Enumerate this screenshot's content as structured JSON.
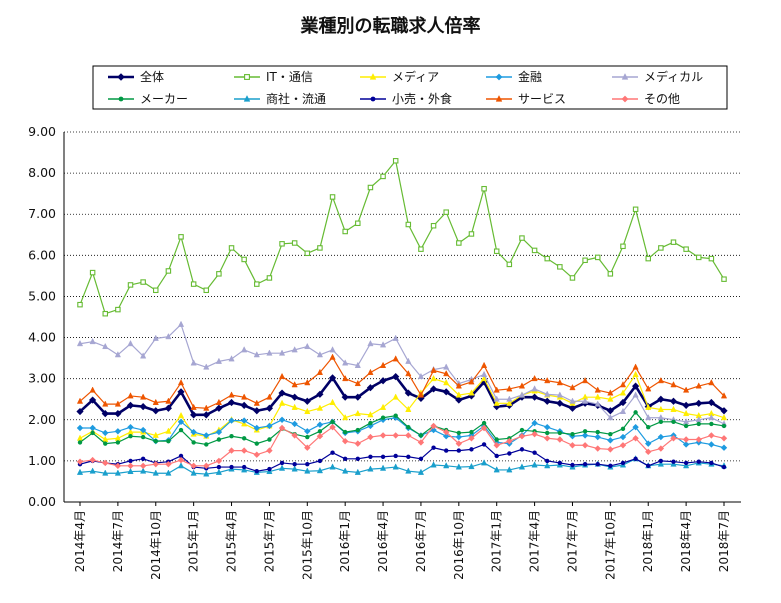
{
  "chart_data": {
    "type": "line",
    "title": "業種別の転職求人倍率",
    "xlabel": "",
    "ylabel": "",
    "ylim": [
      0,
      9
    ],
    "yticks": [
      "0.00",
      "1.00",
      "2.00",
      "3.00",
      "4.00",
      "5.00",
      "6.00",
      "7.00",
      "8.00",
      "9.00"
    ],
    "categories": [
      "2014年4月",
      "2014年5月",
      "2014年6月",
      "2014年7月",
      "2014年8月",
      "2014年9月",
      "2014年10月",
      "2014年11月",
      "2014年12月",
      "2015年1月",
      "2015年2月",
      "2015年3月",
      "2015年4月",
      "2015年5月",
      "2015年6月",
      "2015年7月",
      "2015年8月",
      "2015年9月",
      "2015年10月",
      "2015年11月",
      "2015年12月",
      "2016年1月",
      "2016年2月",
      "2016年3月",
      "2016年4月",
      "2016年5月",
      "2016年6月",
      "2016年7月",
      "2016年8月",
      "2016年9月",
      "2016年10月",
      "2016年11月",
      "2016年12月",
      "2017年1月",
      "2017年2月",
      "2017年3月",
      "2017年4月",
      "2017年5月",
      "2017年6月",
      "2017年7月",
      "2017年8月",
      "2017年9月",
      "2017年10月",
      "2017年11月",
      "2017年12月",
      "2018年1月",
      "2018年2月",
      "2018年3月",
      "2018年4月",
      "2018年5月",
      "2018年6月",
      "2018年7月"
    ],
    "xticks_shown": [
      "2014年4月",
      "2014年7月",
      "2014年10月",
      "2015年1月",
      "2015年4月",
      "2015年7月",
      "2015年10月",
      "2016年1月",
      "2016年4月",
      "2016年7月",
      "2016年10月",
      "2017年1月",
      "2017年4月",
      "2017年7月",
      "2017年10月",
      "2018年1月",
      "2018年4月",
      "2018年7月"
    ],
    "grid": true,
    "legend_position": "top",
    "series": [
      {
        "name": "全体",
        "color": "#000066",
        "marker": "diamond",
        "values": [
          2.2,
          2.48,
          2.15,
          2.15,
          2.35,
          2.32,
          2.22,
          2.28,
          2.68,
          2.12,
          2.12,
          2.28,
          2.42,
          2.35,
          2.22,
          2.28,
          2.65,
          2.55,
          2.45,
          2.62,
          3.02,
          2.55,
          2.55,
          2.78,
          2.95,
          3.05,
          2.65,
          2.52,
          2.75,
          2.68,
          2.48,
          2.58,
          2.92,
          2.32,
          2.35,
          2.55,
          2.55,
          2.45,
          2.4,
          2.28,
          2.4,
          2.35,
          2.22,
          2.42,
          2.82,
          2.32,
          2.5,
          2.45,
          2.35,
          2.4,
          2.42,
          2.22
        ]
      },
      {
        "name": "IT・通信",
        "color": "#66bb33",
        "marker": "square",
        "values": [
          4.8,
          5.58,
          4.58,
          4.68,
          5.28,
          5.35,
          5.15,
          5.62,
          6.45,
          5.3,
          5.15,
          5.55,
          6.18,
          5.9,
          5.3,
          5.45,
          6.28,
          6.3,
          6.05,
          6.18,
          7.42,
          6.58,
          6.78,
          7.65,
          7.92,
          8.3,
          6.75,
          6.15,
          6.72,
          7.05,
          6.3,
          6.52,
          7.62,
          6.1,
          5.78,
          6.42,
          6.12,
          5.92,
          5.72,
          5.45,
          5.88,
          5.95,
          5.55,
          6.22,
          7.12,
          5.92,
          6.18,
          6.32,
          6.15,
          5.95,
          5.92,
          5.42
        ]
      },
      {
        "name": "メディア",
        "color": "#ffee00",
        "marker": "triangle",
        "values": [
          1.55,
          1.72,
          1.52,
          1.55,
          1.7,
          1.7,
          1.62,
          1.72,
          2.1,
          1.65,
          1.6,
          1.75,
          2.0,
          1.9,
          1.75,
          1.85,
          2.4,
          2.3,
          2.2,
          2.28,
          2.42,
          2.05,
          2.15,
          2.12,
          2.3,
          2.55,
          2.25,
          2.65,
          3.0,
          2.9,
          2.6,
          2.65,
          3.0,
          2.4,
          2.4,
          2.6,
          2.7,
          2.6,
          2.55,
          2.4,
          2.55,
          2.55,
          2.5,
          2.65,
          3.1,
          2.3,
          2.25,
          2.25,
          2.15,
          2.1,
          2.15,
          2.05
        ]
      },
      {
        "name": "金融",
        "color": "#1e9be0",
        "marker": "diamond",
        "values": [
          1.8,
          1.8,
          1.68,
          1.72,
          1.82,
          1.75,
          1.48,
          1.5,
          1.95,
          1.7,
          1.62,
          1.7,
          1.98,
          1.98,
          1.8,
          1.85,
          2.0,
          1.9,
          1.72,
          1.88,
          1.95,
          1.68,
          1.72,
          1.85,
          2.0,
          2.05,
          1.8,
          1.62,
          1.75,
          1.6,
          1.58,
          1.62,
          1.85,
          1.45,
          1.42,
          1.62,
          1.92,
          1.82,
          1.72,
          1.6,
          1.62,
          1.58,
          1.5,
          1.58,
          1.82,
          1.42,
          1.58,
          1.62,
          1.4,
          1.45,
          1.4,
          1.32
        ]
      },
      {
        "name": "メディカル",
        "color": "#a6a6d2",
        "marker": "triangle",
        "values": [
          3.85,
          3.9,
          3.78,
          3.58,
          3.85,
          3.55,
          3.98,
          4.02,
          4.32,
          3.38,
          3.28,
          3.42,
          3.48,
          3.7,
          3.58,
          3.62,
          3.62,
          3.7,
          3.78,
          3.58,
          3.7,
          3.38,
          3.32,
          3.85,
          3.82,
          3.98,
          3.42,
          3.05,
          3.22,
          3.28,
          2.88,
          2.98,
          3.1,
          2.5,
          2.5,
          2.6,
          2.75,
          2.62,
          2.6,
          2.45,
          2.45,
          2.38,
          2.05,
          2.2,
          2.6,
          2.05,
          2.05,
          2.0,
          1.95,
          2.0,
          2.05,
          1.9
        ]
      },
      {
        "name": "メーカー",
        "color": "#009944",
        "marker": "circle",
        "values": [
          1.45,
          1.68,
          1.42,
          1.45,
          1.6,
          1.58,
          1.48,
          1.48,
          1.75,
          1.45,
          1.4,
          1.52,
          1.6,
          1.55,
          1.42,
          1.52,
          1.78,
          1.65,
          1.58,
          1.72,
          1.95,
          1.7,
          1.75,
          1.92,
          2.05,
          2.1,
          1.82,
          1.62,
          1.85,
          1.75,
          1.68,
          1.7,
          1.92,
          1.52,
          1.55,
          1.75,
          1.72,
          1.68,
          1.68,
          1.65,
          1.72,
          1.7,
          1.65,
          1.78,
          2.18,
          1.82,
          1.95,
          1.95,
          1.85,
          1.9,
          1.9,
          1.85
        ]
      },
      {
        "name": "商社・流通",
        "color": "#1a9fcc",
        "marker": "triangle",
        "values": [
          0.72,
          0.75,
          0.7,
          0.7,
          0.74,
          0.75,
          0.7,
          0.7,
          0.88,
          0.7,
          0.68,
          0.72,
          0.8,
          0.78,
          0.72,
          0.74,
          0.82,
          0.8,
          0.75,
          0.76,
          0.85,
          0.75,
          0.72,
          0.8,
          0.82,
          0.85,
          0.75,
          0.72,
          0.9,
          0.88,
          0.85,
          0.86,
          0.95,
          0.78,
          0.78,
          0.85,
          0.9,
          0.88,
          0.9,
          0.85,
          0.9,
          0.92,
          0.85,
          0.9,
          1.05,
          0.88,
          0.92,
          0.92,
          0.88,
          0.95,
          0.92,
          0.88
        ]
      },
      {
        "name": "小売・外食",
        "color": "#000099",
        "marker": "circle",
        "values": [
          0.92,
          1.0,
          0.95,
          0.92,
          1.0,
          1.05,
          0.95,
          0.98,
          1.12,
          0.85,
          0.82,
          0.85,
          0.85,
          0.85,
          0.75,
          0.8,
          0.95,
          0.92,
          0.92,
          1.0,
          1.2,
          1.05,
          1.05,
          1.1,
          1.1,
          1.12,
          1.1,
          1.05,
          1.32,
          1.25,
          1.25,
          1.28,
          1.4,
          1.12,
          1.18,
          1.28,
          1.2,
          1.0,
          0.95,
          0.9,
          0.92,
          0.92,
          0.88,
          0.95,
          1.05,
          0.88,
          1.0,
          0.98,
          0.95,
          0.98,
          0.95,
          0.85
        ]
      },
      {
        "name": "サービス",
        "color": "#ee5500",
        "marker": "triangle",
        "values": [
          2.45,
          2.72,
          2.38,
          2.38,
          2.58,
          2.55,
          2.42,
          2.45,
          2.9,
          2.3,
          2.28,
          2.42,
          2.6,
          2.55,
          2.4,
          2.55,
          3.05,
          2.85,
          2.9,
          3.15,
          3.52,
          3.0,
          2.88,
          3.15,
          3.32,
          3.48,
          3.12,
          2.6,
          3.2,
          3.12,
          2.82,
          2.92,
          3.32,
          2.72,
          2.75,
          2.82,
          3.0,
          2.95,
          2.9,
          2.78,
          2.95,
          2.72,
          2.65,
          2.85,
          3.28,
          2.75,
          2.95,
          2.85,
          2.72,
          2.82,
          2.9,
          2.58
        ]
      },
      {
        "name": "その他",
        "color": "#ff7777",
        "marker": "diamond",
        "values": [
          0.98,
          1.02,
          0.95,
          0.88,
          0.88,
          0.88,
          0.92,
          0.92,
          1.02,
          0.88,
          0.88,
          1.0,
          1.25,
          1.25,
          1.15,
          1.25,
          1.8,
          1.62,
          1.32,
          1.6,
          1.82,
          1.48,
          1.42,
          1.58,
          1.62,
          1.62,
          1.62,
          1.45,
          1.85,
          1.7,
          1.42,
          1.55,
          1.8,
          1.38,
          1.48,
          1.6,
          1.65,
          1.55,
          1.52,
          1.38,
          1.38,
          1.3,
          1.28,
          1.38,
          1.55,
          1.22,
          1.3,
          1.55,
          1.52,
          1.52,
          1.62,
          1.55
        ]
      }
    ]
  }
}
